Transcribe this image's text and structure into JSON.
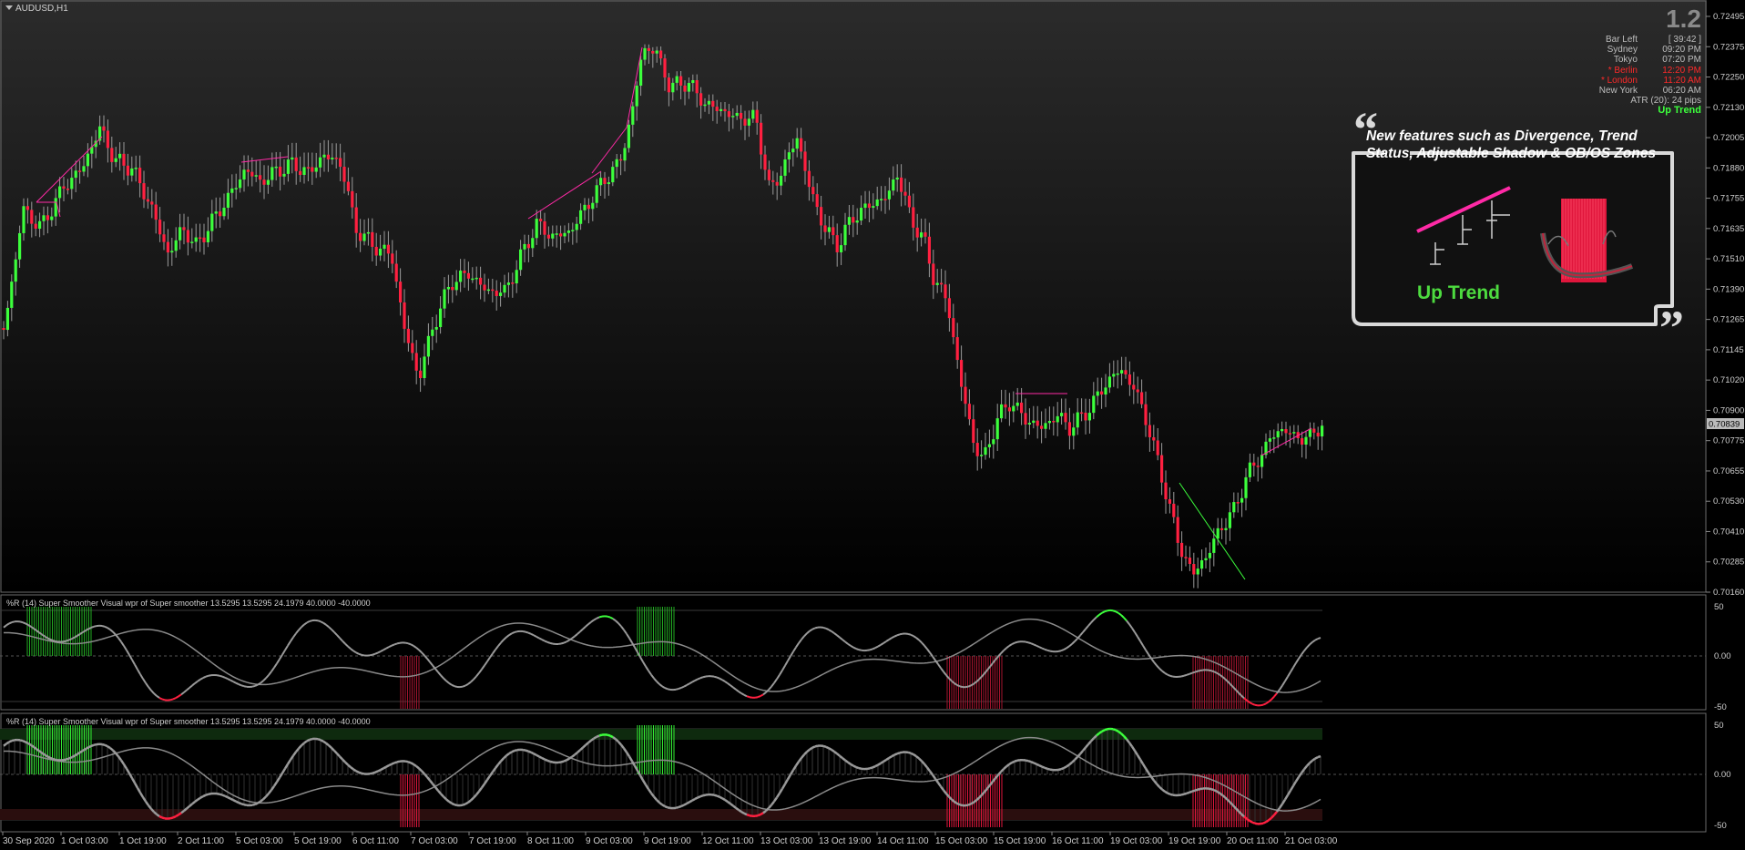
{
  "symbol": "AUDUSD,H1",
  "version": "1.2",
  "info_panel": {
    "bar_left_label": "Bar Left",
    "bar_left_value": "[ 39:42 ]",
    "sessions": [
      {
        "name": "Sydney",
        "time": "09:20 PM",
        "active": false
      },
      {
        "name": "Tokyo",
        "time": "07:20 PM",
        "active": false
      },
      {
        "name": "* Berlin",
        "time": "12:20 PM",
        "active": true
      },
      {
        "name": "* London",
        "time": "11:20 AM",
        "active": true
      },
      {
        "name": "New York",
        "time": "06:20 AM",
        "active": false
      }
    ],
    "atr": "ATR (20): 24 pips",
    "trend": "Up Trend"
  },
  "callout": {
    "text": "New features such as Divergence, Trend Status, Adjustable Shadow & OB/OS Zones",
    "trend_label": "Up Trend"
  },
  "colors": {
    "bull": "#3cff3c",
    "bear": "#ff2040",
    "divergence": "#ff2aa6",
    "background": "#000000",
    "wick": "#9a9a9a"
  },
  "price_axis": {
    "labels": [
      "0.72495",
      "0.72375",
      "0.72250",
      "0.72130",
      "0.72005",
      "0.71880",
      "0.71755",
      "0.71635",
      "0.71510",
      "0.71390",
      "0.71265",
      "0.71145",
      "0.71020",
      "0.70900",
      "0.70775",
      "0.70655",
      "0.70530",
      "0.70410",
      "0.70285",
      "0.70160"
    ],
    "current": "0.70839"
  },
  "subwindow1": {
    "label": "%R (14) Super Smoother Visual wpr of Super smoother 13.5295 13.5295 24.1979 40.0000 -40.0000",
    "levels": [
      "50",
      "0.00",
      "-50"
    ]
  },
  "subwindow2": {
    "label": "%R (14) Super Smoother Visual wpr of Super smoother 13.5295 13.5295 24.1979 40.0000 -40.0000",
    "levels": [
      "50",
      "0.00",
      "-50"
    ]
  },
  "time_axis": [
    "30 Sep 2020",
    "1 Oct 03:00",
    "1 Oct 19:00",
    "2 Oct 11:00",
    "5 Oct 03:00",
    "5 Oct 19:00",
    "6 Oct 11:00",
    "7 Oct 03:00",
    "7 Oct 19:00",
    "8 Oct 11:00",
    "9 Oct 03:00",
    "9 Oct 19:00",
    "12 Oct 11:00",
    "13 Oct 03:00",
    "13 Oct 19:00",
    "14 Oct 11:00",
    "15 Oct 03:00",
    "15 Oct 19:00",
    "16 Oct 11:00",
    "19 Oct 03:00",
    "19 Oct 19:00",
    "20 Oct 11:00",
    "21 Oct 03:00"
  ]
}
